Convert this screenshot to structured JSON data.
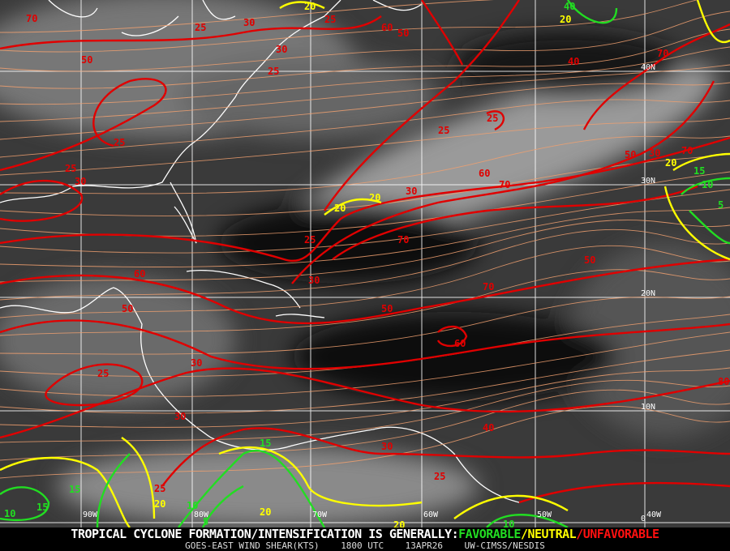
{
  "colors": {
    "background": "#000000",
    "cloud": "#9a9a9a",
    "coast": "#ffffff",
    "grid": "#ffffff",
    "streamline": "#f0a070",
    "unfavorable": "#e00000",
    "neutral": "#ffff00",
    "favorable": "#22dd22"
  },
  "latitude_labels": [
    "40N",
    "30N",
    "20N",
    "10N",
    "0"
  ],
  "longitude_labels": [
    "90W",
    "80W",
    "70W",
    "60W",
    "50W",
    "40W"
  ],
  "contour_labels": {
    "red": [
      "70",
      "25",
      "50",
      "30",
      "25",
      "25",
      "25",
      "25",
      "30",
      "25",
      "25",
      "70",
      "50",
      "60",
      "30",
      "25",
      "30",
      "70",
      "70",
      "50",
      "30",
      "70",
      "40",
      "60",
      "50",
      "30",
      "50",
      "60",
      "70",
      "80",
      "30",
      "25",
      "40",
      "30",
      "25",
      "60",
      "25",
      "50",
      "30"
    ],
    "yellow": [
      "20",
      "20",
      "20",
      "20",
      "20",
      "20",
      "20",
      "20"
    ],
    "green": [
      "10",
      "15",
      "10",
      "15",
      "15",
      "10",
      "5",
      "15",
      "10",
      "5",
      "40"
    ]
  },
  "footer": {
    "headline_prefix": "TROPICAL CYCLONE FORMATION/INTENSIFICATION IS GENERALLY:",
    "favorable": "FAVORABLE",
    "sep1": "/",
    "neutral": "NEUTRAL",
    "sep2": "/",
    "unfavorable": "UNFAVORABLE",
    "product": "GOES-EAST WIND SHEAR(KTS)",
    "time": "1800 UTC",
    "date": "13APR26",
    "source": "UW-CIMSS/NESDIS"
  }
}
